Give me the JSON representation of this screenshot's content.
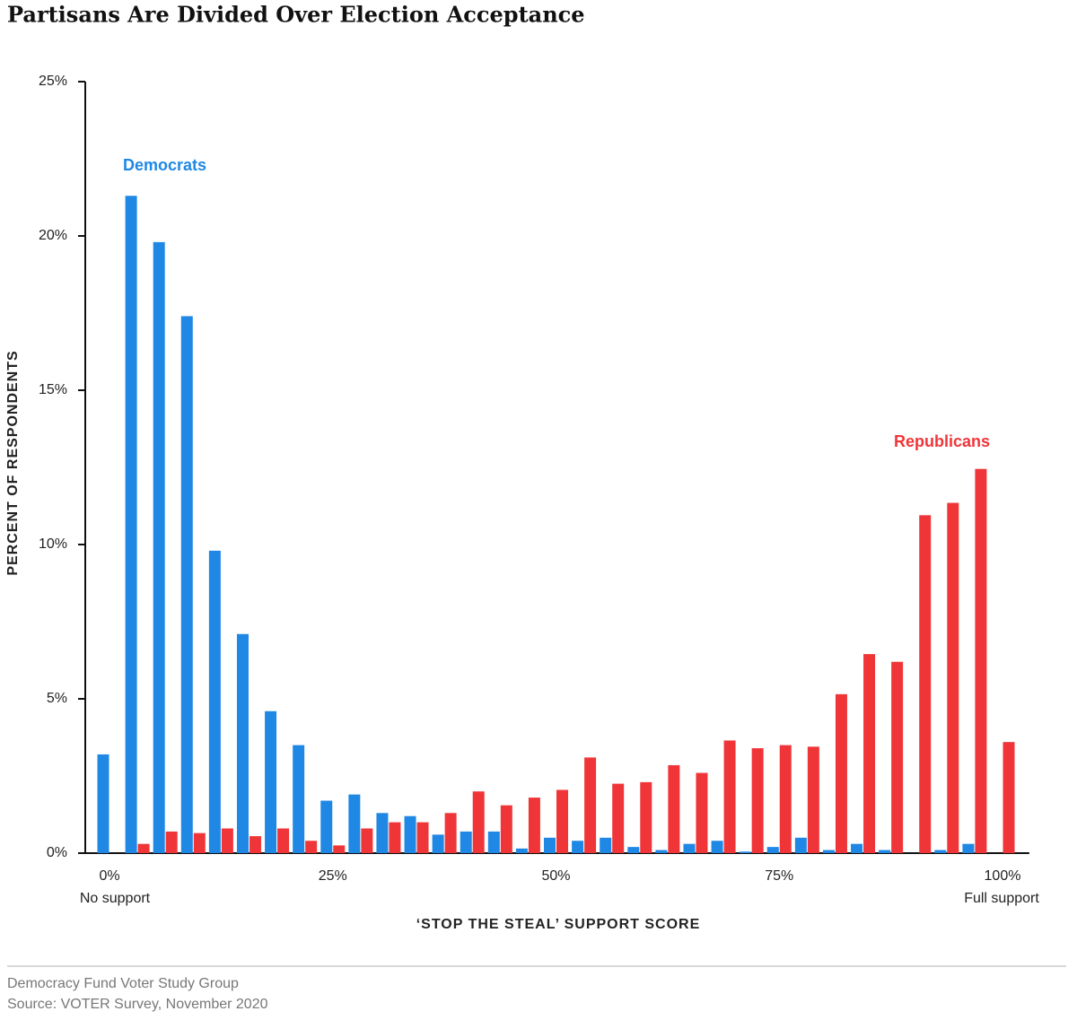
{
  "chart_data": {
    "type": "bar",
    "title": "Partisans Are Divided Over Election Acceptance",
    "x_label": "‘STOP THE STEAL’ SUPPORT SCORE",
    "y_label": "PERCENT OF RESPONDENTS",
    "x_annotations": [
      "No support",
      "Full support"
    ],
    "x": [
      0,
      3.125,
      6.25,
      9.375,
      12.5,
      15.625,
      18.75,
      21.875,
      25,
      28.125,
      31.25,
      34.375,
      37.5,
      40.625,
      43.75,
      46.875,
      50,
      53.125,
      56.25,
      59.375,
      62.5,
      65.625,
      68.75,
      71.875,
      75,
      78.125,
      81.25,
      84.375,
      87.5,
      90.625,
      93.75,
      96.875,
      100
    ],
    "series": [
      {
        "name": "Democrats",
        "color": "#1f88e5",
        "values": [
          3.2,
          21.3,
          19.8,
          17.4,
          9.8,
          7.1,
          4.6,
          3.5,
          1.7,
          1.9,
          1.3,
          1.2,
          0.6,
          0.7,
          0.7,
          0.15,
          0.5,
          0.4,
          0.5,
          0.2,
          0.1,
          0.3,
          0.4,
          0.05,
          0.2,
          0.5,
          0.1,
          0.3,
          0.1,
          0,
          0.1,
          0.3,
          0
        ]
      },
      {
        "name": "Republicans",
        "color": "#f03538",
        "values": [
          0,
          0.3,
          0.7,
          0.65,
          0.8,
          0.55,
          0.8,
          0.4,
          0.25,
          0.8,
          1.0,
          1.0,
          1.3,
          2.0,
          1.55,
          1.8,
          2.05,
          3.1,
          2.25,
          2.3,
          2.85,
          2.6,
          3.65,
          3.4,
          3.5,
          3.45,
          5.15,
          6.45,
          6.2,
          10.95,
          11.35,
          12.45,
          3.6
        ]
      }
    ],
    "xlim": [
      -3,
      103
    ],
    "xticks": [
      {
        "value": 0,
        "label": "0%"
      },
      {
        "value": 25,
        "label": "25%"
      },
      {
        "value": 50,
        "label": "50%"
      },
      {
        "value": 75,
        "label": "75%"
      },
      {
        "value": 100,
        "label": "100%"
      }
    ],
    "ylim": [
      0,
      25
    ],
    "yticks": [
      {
        "value": 0,
        "label": "0%"
      },
      {
        "value": 5,
        "label": "5%"
      },
      {
        "value": 10,
        "label": "10%"
      },
      {
        "value": 15,
        "label": "15%"
      },
      {
        "value": 20,
        "label": "20%"
      },
      {
        "value": 25,
        "label": "25%"
      }
    ],
    "grid": false
  },
  "footer": [
    "Democracy Fund Voter Study Group",
    "Source: VOTER Survey, November 2020"
  ]
}
